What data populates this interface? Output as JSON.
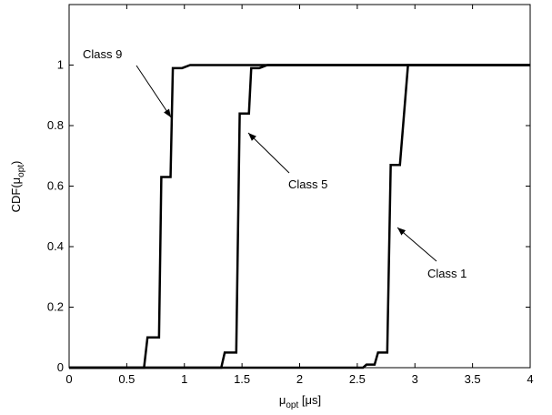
{
  "chart_data": {
    "type": "line",
    "xlabel": {
      "base": "μ",
      "sub": "opt",
      "rest": " [μs]"
    },
    "ylabel": {
      "base": "CDF(μ",
      "sub": "opt",
      "rest": ")"
    },
    "xlim": [
      0,
      4
    ],
    "xticks": [
      0,
      0.5,
      1,
      1.5,
      2,
      2.5,
      3,
      3.5,
      4
    ],
    "ylim": [
      0,
      1.2
    ],
    "yticks": [
      0,
      0.2,
      0.4,
      0.6,
      0.8,
      1
    ],
    "grid": false,
    "series": [
      {
        "name": "Class 9",
        "color": "#000000",
        "x": [
          0,
          0.65,
          0.68,
          0.78,
          0.8,
          0.88,
          0.9,
          0.98,
          1.05,
          4
        ],
        "values": [
          0,
          0,
          0.1,
          0.1,
          0.63,
          0.63,
          0.99,
          0.99,
          1,
          1
        ]
      },
      {
        "name": "Class 5",
        "color": "#000000",
        "x": [
          0,
          1.32,
          1.35,
          1.45,
          1.48,
          1.56,
          1.58,
          1.65,
          1.72,
          4
        ],
        "values": [
          0,
          0,
          0.05,
          0.05,
          0.84,
          0.84,
          0.99,
          0.99,
          1,
          1
        ]
      },
      {
        "name": "Class 1",
        "color": "#000000",
        "x": [
          0,
          2.55,
          2.58,
          2.65,
          2.68,
          2.76,
          2.79,
          2.87,
          2.94,
          4
        ],
        "values": [
          0,
          0,
          0.01,
          0.01,
          0.05,
          0.05,
          0.67,
          0.67,
          1,
          1
        ]
      }
    ]
  }
}
